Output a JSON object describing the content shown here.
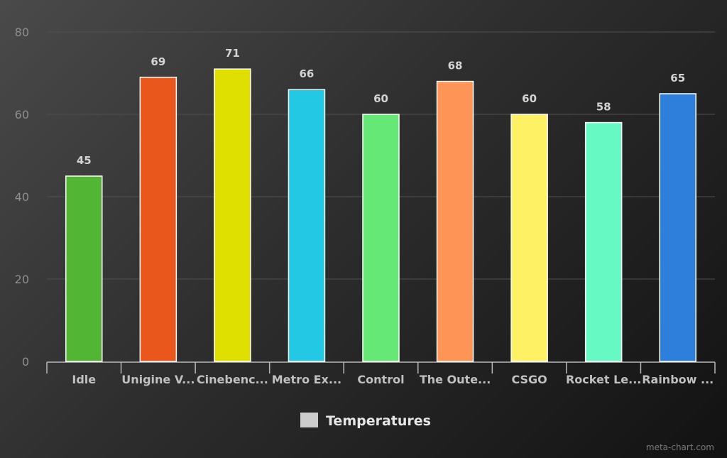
{
  "chart_data": {
    "type": "bar",
    "title": "",
    "xlabel": "",
    "ylabel": "",
    "categories": [
      "Idle",
      "Unigine V...",
      "Cinebenc...",
      "Metro Ex...",
      "Control",
      "The Oute...",
      "CSGO",
      "Rocket Le...",
      "Rainbow ..."
    ],
    "series": [
      {
        "name": "Temperatures",
        "values": [
          45,
          69,
          71,
          66,
          60,
          68,
          60,
          58,
          65
        ]
      }
    ],
    "bar_colors": [
      "#52b534",
      "#ea571c",
      "#dfe000",
      "#23c9e4",
      "#66e876",
      "#fe9556",
      "#fff164",
      "#67f9c4",
      "#2e7fdc"
    ],
    "ylim": [
      0,
      80
    ],
    "yticks": [
      0,
      20,
      40,
      60,
      80
    ],
    "grid": true,
    "data_labels": true,
    "legend_position": "bottom-center",
    "legend_swatch_color": "#cccccc"
  },
  "credit": "meta-chart.com"
}
